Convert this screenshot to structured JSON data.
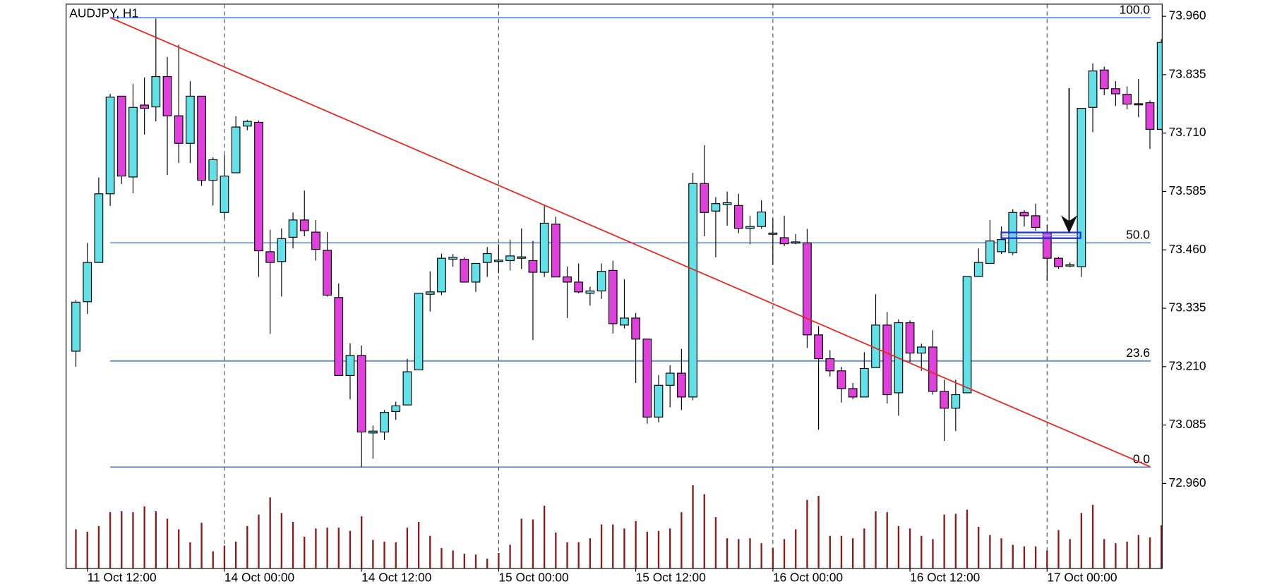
{
  "chart_data": {
    "type": "candlestick",
    "title": "AUDJPY, H1",
    "categories": [
      null,
      "11 Oct 12:00",
      null,
      null,
      null,
      null,
      null,
      null,
      null,
      null,
      null,
      null,
      null,
      "14 Oct 00:00",
      null,
      null,
      null,
      null,
      null,
      null,
      null,
      null,
      null,
      null,
      null,
      "14 Oct 12:00",
      null,
      null,
      null,
      null,
      null,
      null,
      null,
      null,
      null,
      null,
      null,
      "15 Oct 00:00",
      null,
      null,
      null,
      null,
      null,
      null,
      null,
      null,
      null,
      null,
      null,
      "15 Oct 12:00",
      null,
      null,
      null,
      null,
      null,
      null,
      null,
      null,
      null,
      null,
      null,
      "16 Oct 00:00",
      null,
      null,
      null,
      null,
      null,
      null,
      null,
      null,
      null,
      null,
      null,
      "16 Oct 12:00",
      null,
      null,
      null,
      null,
      null,
      null,
      null,
      null,
      null,
      null,
      null,
      "17 Oct 00:00",
      null,
      null,
      null,
      null,
      null,
      null,
      null,
      null,
      null,
      null
    ],
    "open": [
      73.243,
      73.349,
      73.433,
      73.58,
      73.789,
      73.616,
      73.77,
      73.766,
      73.831,
      73.747,
      73.688,
      73.789,
      73.609,
      73.54,
      73.625,
      73.725,
      73.733,
      73.456,
      73.435,
      73.487,
      73.524,
      73.498,
      73.459,
      73.358,
      73.191,
      73.234,
      73.068,
      73.07,
      73.114,
      73.128,
      73.203,
      73.365,
      73.37,
      73.44,
      73.44,
      73.391,
      73.433,
      73.435,
      73.437,
      73.442,
      73.437,
      73.412,
      73.515,
      73.402,
      73.391,
      73.367,
      73.372,
      73.416,
      73.299,
      73.314,
      73.269,
      73.102,
      73.17,
      73.196,
      73.145,
      73.602,
      73.543,
      73.557,
      73.555,
      73.506,
      73.51,
      73.494,
      73.486,
      73.475,
      73.475,
      73.278,
      73.227,
      73.201,
      73.163,
      73.145,
      73.208,
      73.299,
      73.154,
      73.304,
      73.239,
      73.252,
      73.157,
      73.121,
      73.154,
      73.403,
      73.431,
      73.456,
      73.454,
      73.54,
      73.533,
      73.498,
      73.442,
      73.426,
      73.424,
      73.765,
      73.845,
      73.805,
      73.793,
      73.773,
      73.775,
      73.718
    ],
    "high": [
      73.353,
      73.475,
      73.615,
      73.794,
      73.789,
      73.815,
      73.829,
      73.955,
      73.873,
      73.899,
      73.821,
      73.789,
      73.658,
      73.663,
      73.746,
      73.738,
      73.737,
      73.503,
      73.506,
      73.54,
      73.587,
      73.524,
      73.498,
      73.388,
      73.26,
      73.255,
      73.084,
      73.117,
      73.135,
      73.227,
      73.367,
      73.414,
      73.452,
      73.451,
      73.444,
      73.431,
      73.466,
      73.472,
      73.482,
      73.506,
      73.479,
      73.555,
      73.531,
      73.424,
      73.431,
      73.381,
      73.431,
      73.437,
      73.397,
      73.325,
      73.269,
      73.192,
      73.213,
      73.248,
      73.625,
      73.684,
      73.573,
      73.585,
      73.58,
      73.533,
      73.566,
      73.527,
      73.533,
      73.494,
      73.505,
      73.297,
      73.245,
      73.21,
      73.175,
      73.241,
      73.365,
      73.327,
      73.311,
      73.309,
      73.259,
      73.288,
      73.182,
      73.182,
      73.403,
      73.463,
      73.524,
      73.51,
      73.547,
      73.545,
      73.559,
      73.513,
      73.445,
      73.433,
      73.763,
      73.859,
      73.852,
      73.821,
      73.81,
      73.826,
      73.78,
      73.911
    ],
    "low": [
      73.21,
      73.323,
      73.433,
      73.554,
      73.601,
      73.581,
      73.707,
      73.735,
      73.62,
      73.646,
      73.646,
      73.597,
      73.555,
      73.527,
      73.625,
      73.716,
      73.402,
      73.28,
      73.36,
      73.463,
      73.489,
      73.437,
      73.36,
      73.191,
      73.14,
      72.995,
      73.013,
      73.053,
      73.096,
      73.128,
      73.203,
      73.328,
      73.363,
      73.424,
      73.391,
      73.37,
      73.402,
      73.41,
      73.416,
      73.419,
      73.267,
      73.402,
      73.402,
      73.314,
      73.367,
      73.341,
      73.355,
      73.281,
      73.292,
      73.175,
      73.088,
      73.091,
      73.123,
      73.117,
      73.138,
      73.489,
      73.444,
      73.512,
      73.496,
      73.472,
      73.505,
      73.428,
      73.468,
      73.472,
      73.25,
      73.075,
      73.189,
      73.133,
      73.14,
      73.145,
      73.208,
      73.131,
      73.105,
      73.22,
      73.201,
      73.15,
      73.051,
      73.072,
      73.154,
      73.402,
      73.431,
      73.451,
      73.449,
      73.51,
      73.501,
      73.393,
      73.419,
      73.423,
      73.402,
      73.712,
      73.791,
      73.768,
      73.761,
      73.744,
      73.676,
      73.716
    ],
    "close": [
      73.348,
      73.433,
      73.58,
      73.787,
      73.618,
      73.765,
      73.763,
      73.831,
      73.747,
      73.688,
      73.789,
      73.609,
      73.653,
      73.618,
      73.723,
      73.735,
      73.458,
      73.433,
      73.484,
      73.524,
      73.501,
      73.461,
      73.363,
      73.191,
      73.234,
      73.07,
      73.072,
      73.112,
      73.126,
      73.199,
      73.367,
      73.37,
      73.442,
      73.444,
      73.391,
      73.431,
      73.452,
      73.438,
      73.447,
      73.445,
      73.412,
      73.517,
      73.402,
      73.391,
      73.37,
      73.372,
      73.414,
      73.302,
      73.314,
      73.269,
      73.102,
      73.17,
      73.196,
      73.145,
      73.602,
      73.54,
      73.559,
      73.561,
      73.506,
      73.51,
      73.541,
      73.496,
      73.473,
      73.477,
      73.278,
      73.227,
      73.201,
      73.163,
      73.145,
      73.206,
      73.299,
      73.15,
      73.304,
      73.239,
      73.252,
      73.157,
      73.121,
      73.15,
      73.403,
      73.433,
      73.479,
      73.482,
      73.54,
      73.533,
      73.508,
      73.442,
      73.424,
      73.428,
      73.763,
      73.843,
      73.805,
      73.794,
      73.772,
      73.772,
      73.718,
      73.904
    ],
    "volume": [
      48,
      45,
      52,
      69,
      70,
      69,
      76,
      70,
      61,
      48,
      32,
      56,
      21,
      28,
      33,
      52,
      66,
      87,
      68,
      57,
      39,
      49,
      50,
      50,
      46,
      64,
      35,
      33,
      32,
      50,
      57,
      40,
      25,
      22,
      18,
      17,
      12,
      19,
      29,
      61,
      60,
      77,
      44,
      32,
      32,
      37,
      54,
      54,
      49,
      58,
      45,
      46,
      49,
      69,
      102,
      91,
      63,
      37,
      36,
      37,
      31,
      25,
      36,
      48,
      84,
      89,
      40,
      40,
      37,
      49,
      70,
      69,
      52,
      49,
      40,
      36,
      66,
      67,
      72,
      51,
      41,
      37,
      29,
      27,
      27,
      22,
      47,
      36,
      68,
      78,
      36,
      31,
      33,
      41,
      38,
      53
    ],
    "up_color": "#62e2e8",
    "down_color": "#e040dc",
    "volume_color": "#8b1a1a",
    "ylim": [
      72.778,
      73.986
    ],
    "yticks": [
      {
        "value": 73.96,
        "label": "73.960"
      },
      73.835,
      {
        "value": 73.71,
        "label": "73.710"
      },
      73.585,
      {
        "value": 73.46,
        "label": "73.460"
      },
      73.335,
      {
        "value": 73.21,
        "label": "73.210"
      },
      73.085,
      {
        "value": 72.96,
        "label": "72.960"
      }
    ],
    "fib_color": "#3a6fe0",
    "fib_levels": [
      {
        "label": "100.0",
        "price": 73.957
      },
      {
        "label": "50.0",
        "price": 73.475
      },
      {
        "label": "23.6",
        "price": 73.222
      },
      {
        "label": "0.0",
        "price": 72.995
      }
    ],
    "trendline": {
      "color": "#e8231a",
      "x": [
        3,
        94
      ],
      "prices": [
        73.957,
        72.996
      ]
    }
  }
}
